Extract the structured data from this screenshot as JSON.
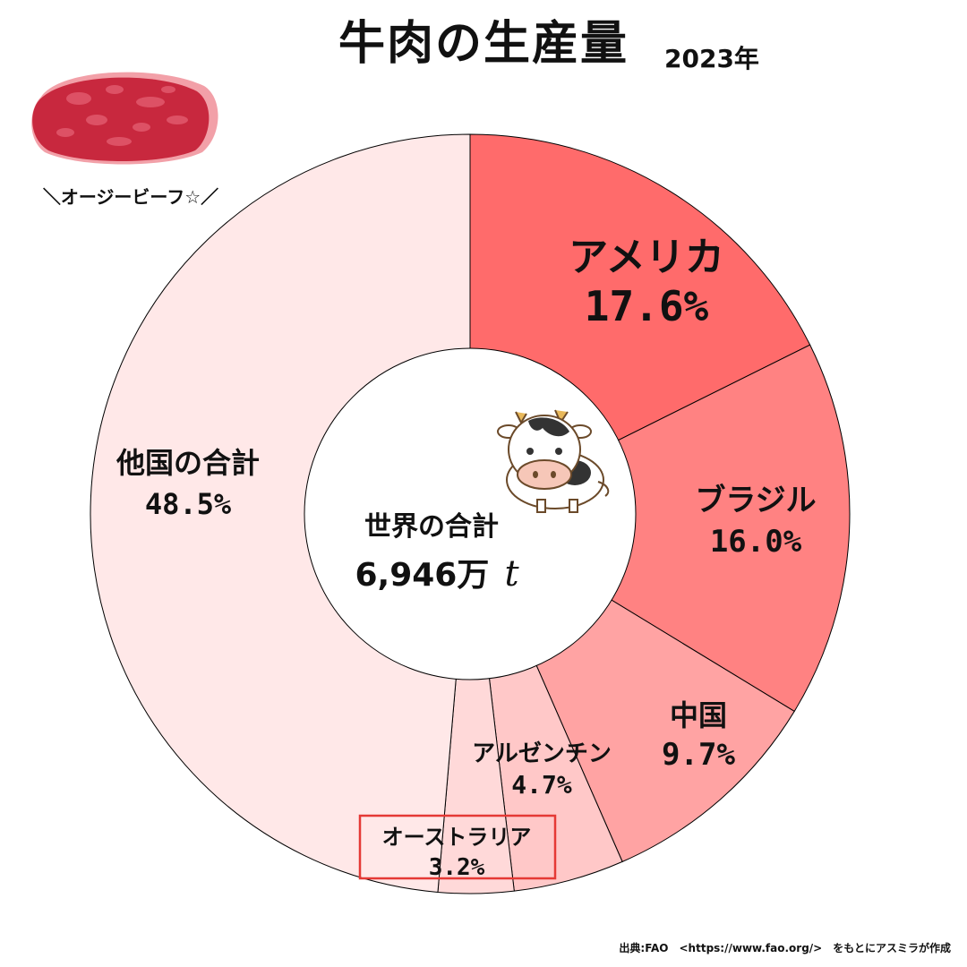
{
  "header": {
    "title": "牛肉の生産量",
    "year": "2023年"
  },
  "illustration": {
    "steak_caption": "＼オージービーフ☆／",
    "steak_icon": "steak-icon",
    "cow_icon": "cow-icon"
  },
  "center": {
    "label": "世界の合計",
    "value": "6,946万",
    "unit": "t"
  },
  "source": "出典:FAO　<https://www.fao.org/>　をもとにアスミラが作成",
  "chart_data": {
    "type": "pie",
    "title": "牛肉の生産量",
    "subtitle": "2023年",
    "total": "6,946万 t",
    "slices": [
      {
        "label": "アメリカ",
        "value": 17.6,
        "display": "17.6%",
        "color": "#ff6b6b"
      },
      {
        "label": "ブラジル",
        "value": 16.0,
        "display": "16.0%",
        "color": "#ff8282"
      },
      {
        "label": "中国",
        "value": 9.7,
        "display": "9.7%",
        "color": "#ffa3a3"
      },
      {
        "label": "アルゼンチン",
        "value": 4.7,
        "display": "4.7%",
        "color": "#ffc8c8"
      },
      {
        "label": "オーストラリア",
        "value": 3.2,
        "display": "3.2%",
        "color": "#ffd9d9",
        "highlighted": true,
        "highlight_color": "#e53935"
      },
      {
        "label": "他国の合計",
        "value": 48.5,
        "display": "48.5%",
        "color": "#ffe8e8"
      }
    ]
  }
}
